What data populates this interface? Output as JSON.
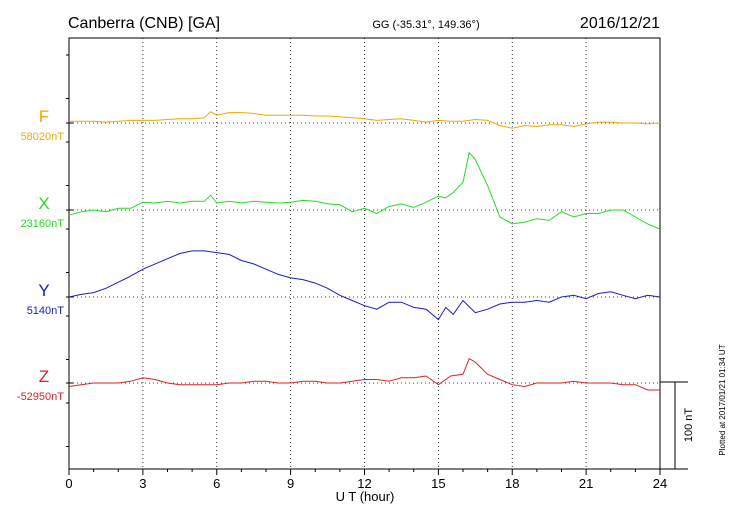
{
  "header": {
    "station": "Canberra (CNB)  [GA]",
    "coords": "GG (-35.31°, 149.36°)",
    "date": "2016/12/21"
  },
  "footer_note": "Plotted at 2017/01/21 01:34 UT",
  "scale_bar_label": "100 nT",
  "chart_data": {
    "type": "line",
    "xlabel": "U T (hour)",
    "xlim": [
      0,
      24
    ],
    "xticks": [
      "0",
      "3",
      "6",
      "9",
      "12",
      "15",
      "18",
      "21",
      "24"
    ],
    "grid": true,
    "scale_nT_per_bar": 100,
    "series": [
      {
        "name": "F",
        "baseline_label": "58020nT",
        "color": "#f0a800",
        "x": [
          0,
          0.5,
          1,
          1.5,
          2,
          2.5,
          3,
          3.5,
          4,
          4.5,
          5,
          5.5,
          5.75,
          6,
          6.5,
          7,
          7.5,
          8,
          8.5,
          9,
          9.5,
          10,
          10.5,
          11,
          11.5,
          12,
          12.5,
          13,
          13.5,
          14,
          14.5,
          15,
          15.5,
          16,
          16.5,
          17,
          17.5,
          18,
          18.5,
          19,
          19.5,
          20,
          20.5,
          21,
          21.5,
          22,
          22.5,
          23,
          23.5,
          24
        ],
        "y": [
          2,
          2,
          2,
          1,
          2,
          3,
          3,
          3,
          4,
          5,
          5,
          6,
          13,
          9,
          12,
          12,
          11,
          9,
          9,
          9,
          9,
          8,
          8,
          7,
          6,
          5,
          3,
          4,
          5,
          3,
          1,
          3,
          2,
          2,
          4,
          3,
          -3,
          -6,
          -3,
          -4,
          -2,
          -2,
          -4,
          -1,
          1,
          1,
          0,
          0,
          -1,
          0
        ]
      },
      {
        "name": "X",
        "baseline_label": "23160nT",
        "color": "#22dd22",
        "x": [
          0,
          0.5,
          1,
          1.5,
          2,
          2.5,
          3,
          3.5,
          4,
          4.5,
          5,
          5.5,
          5.75,
          6,
          6.5,
          7,
          7.5,
          8,
          8.5,
          9,
          9.5,
          10,
          10.5,
          11,
          11.5,
          12,
          12.5,
          13,
          13.5,
          14,
          14.5,
          15,
          15.3,
          15.6,
          16,
          16.25,
          16.5,
          17,
          17.5,
          18,
          18.5,
          19,
          19.5,
          20,
          20.5,
          21,
          21.5,
          22,
          22.5,
          23,
          23.5,
          24
        ],
        "y": [
          -6,
          -2,
          0,
          -2,
          2,
          2,
          9,
          8,
          10,
          8,
          10,
          10,
          17,
          8,
          10,
          8,
          10,
          9,
          8,
          9,
          11,
          10,
          7,
          6,
          -2,
          2,
          -4,
          4,
          7,
          3,
          9,
          16,
          14,
          20,
          32,
          66,
          58,
          28,
          -8,
          -16,
          -14,
          -10,
          -12,
          -2,
          -8,
          -4,
          -4,
          0,
          0,
          -8,
          -16,
          -22
        ]
      },
      {
        "name": "Y",
        "baseline_label": "5140nT",
        "color": "#1a1acc",
        "x": [
          0,
          0.5,
          1,
          1.5,
          2,
          2.5,
          3,
          3.5,
          4,
          4.5,
          5,
          5.5,
          6,
          6.5,
          7,
          7.5,
          8,
          8.5,
          9,
          9.5,
          10,
          10.5,
          11,
          11.5,
          12,
          12.5,
          13,
          13.5,
          14,
          14.5,
          15,
          15.3,
          15.6,
          16,
          16.5,
          17,
          17.5,
          18,
          18.5,
          19,
          19.5,
          20,
          20.5,
          21,
          21.5,
          22,
          22.5,
          23,
          23.5,
          24
        ],
        "y": [
          0,
          3,
          5,
          10,
          17,
          24,
          32,
          38,
          44,
          50,
          53,
          53,
          51,
          49,
          42,
          38,
          32,
          26,
          22,
          20,
          16,
          10,
          2,
          -4,
          -10,
          -14,
          -6,
          -6,
          -12,
          -14,
          -26,
          -12,
          -20,
          -4,
          -18,
          -14,
          -8,
          -6,
          -6,
          -4,
          -6,
          0,
          2,
          -2,
          4,
          6,
          2,
          -2,
          2,
          0
        ]
      },
      {
        "name": "Z",
        "baseline_label": "-52950nT",
        "color": "#dd2222",
        "x": [
          0,
          0.5,
          1,
          1.5,
          2,
          2.5,
          3,
          3.5,
          4,
          4.5,
          5,
          5.5,
          6,
          6.5,
          7,
          7.5,
          8,
          8.5,
          9,
          9.5,
          10,
          10.5,
          11,
          11.5,
          12,
          12.5,
          13,
          13.5,
          14,
          14.5,
          15,
          15.5,
          16,
          16.25,
          16.5,
          17,
          17.5,
          18,
          18.5,
          19,
          19.5,
          20,
          20.5,
          21,
          21.5,
          22,
          22.5,
          23,
          23.5,
          24
        ],
        "y": [
          -4,
          -2,
          0,
          0,
          0,
          2,
          6,
          4,
          0,
          -2,
          -2,
          -2,
          -2,
          0,
          0,
          2,
          2,
          0,
          0,
          2,
          2,
          0,
          0,
          2,
          4,
          4,
          2,
          6,
          6,
          8,
          -2,
          8,
          10,
          28,
          24,
          10,
          4,
          -2,
          -4,
          0,
          0,
          0,
          2,
          0,
          0,
          0,
          -2,
          -2,
          -8,
          -8
        ]
      }
    ]
  }
}
